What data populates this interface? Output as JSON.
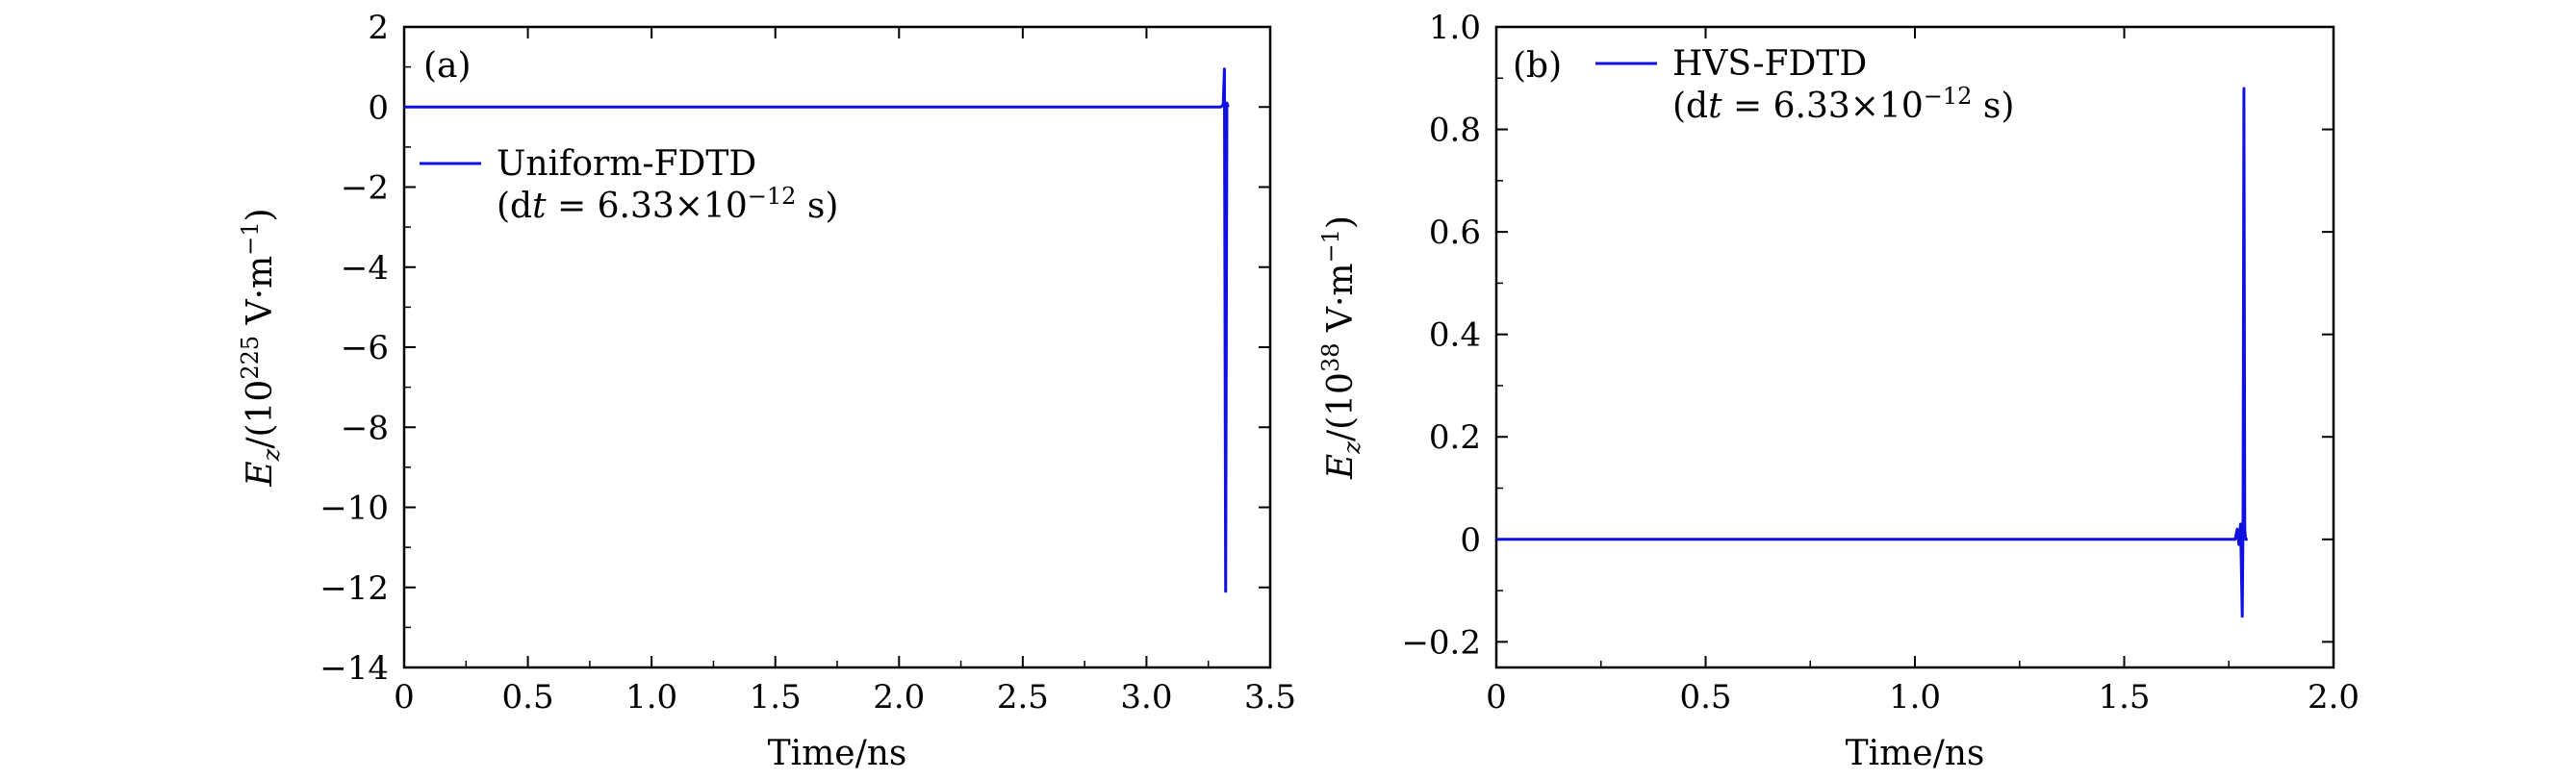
{
  "chart_data": [
    {
      "type": "line",
      "panel_label": "(a)",
      "xlabel": "Time/ns",
      "ylabel_main": "E",
      "ylabel_sub": "z",
      "ylabel_prefix": "/(10",
      "ylabel_exp": "225",
      "ylabel_unit": " V·m",
      "ylabel_unit_exp": "−1",
      "ylabel_close": ")",
      "xlim": [
        0,
        3.5
      ],
      "ylim": [
        -14,
        2
      ],
      "xticks": [
        0,
        0.5,
        1.0,
        1.5,
        2.0,
        2.5,
        3.0,
        3.5
      ],
      "xtick_labels": [
        "0",
        "0.5",
        "1.0",
        "1.5",
        "2.0",
        "2.5",
        "3.0",
        "3.5"
      ],
      "yticks": [
        -14,
        -12,
        -10,
        -8,
        -6,
        -4,
        -2,
        0,
        2
      ],
      "ytick_labels": [
        "−14",
        "−12",
        "−10",
        "−8",
        "−6",
        "−4",
        "−2",
        "0",
        "2"
      ],
      "grid": false,
      "legend_position": "upper-left",
      "legend_line1": "Uniform-FDTD",
      "legend_line2_prefix": "(d",
      "legend_line2_var": "t",
      "legend_line2_mid": " = 6.33×10",
      "legend_line2_exp": "−12",
      "legend_line2_suffix": " s)",
      "series": [
        {
          "name": "Uniform-FDTD",
          "color": "#1010e0",
          "x": [
            0,
            3.28,
            3.3,
            3.31,
            3.315,
            3.32,
            3.325,
            3.33
          ],
          "y": [
            0,
            0,
            0,
            0.05,
            0.95,
            -12.1,
            0.1,
            0
          ]
        }
      ]
    },
    {
      "type": "line",
      "panel_label": "(b)",
      "xlabel": "Time/ns",
      "ylabel_main": "E",
      "ylabel_sub": "z",
      "ylabel_prefix": "/(10",
      "ylabel_exp": "38",
      "ylabel_unit": " V·m",
      "ylabel_unit_exp": "−1",
      "ylabel_close": ")",
      "xlim": [
        0,
        2.0
      ],
      "ylim": [
        -0.25,
        1.0
      ],
      "xticks": [
        0,
        0.5,
        1.0,
        1.5,
        2.0
      ],
      "xtick_labels": [
        "0",
        "0.5",
        "1.0",
        "1.5",
        "2.0"
      ],
      "yticks": [
        -0.2,
        0,
        0.2,
        0.4,
        0.6,
        0.8,
        1.0
      ],
      "ytick_labels": [
        "−0.2",
        "0",
        "0.2",
        "0.4",
        "0.6",
        "0.8",
        "1.0"
      ],
      "grid": false,
      "legend_position": "upper-left",
      "legend_line1": "HVS-FDTD",
      "legend_line2_prefix": "(d",
      "legend_line2_var": "t",
      "legend_line2_mid": " = 6.33×10",
      "legend_line2_exp": "−12",
      "legend_line2_suffix": " s)",
      "series": [
        {
          "name": "HVS-FDTD",
          "color": "#1010e0",
          "x": [
            0,
            1.765,
            1.77,
            1.774,
            1.778,
            1.782,
            1.784,
            1.786,
            1.788,
            1.79,
            1.795
          ],
          "y": [
            0,
            0,
            0.02,
            -0.01,
            0.03,
            -0.15,
            0.05,
            0.88,
            0.02,
            0,
            0
          ]
        }
      ]
    }
  ]
}
